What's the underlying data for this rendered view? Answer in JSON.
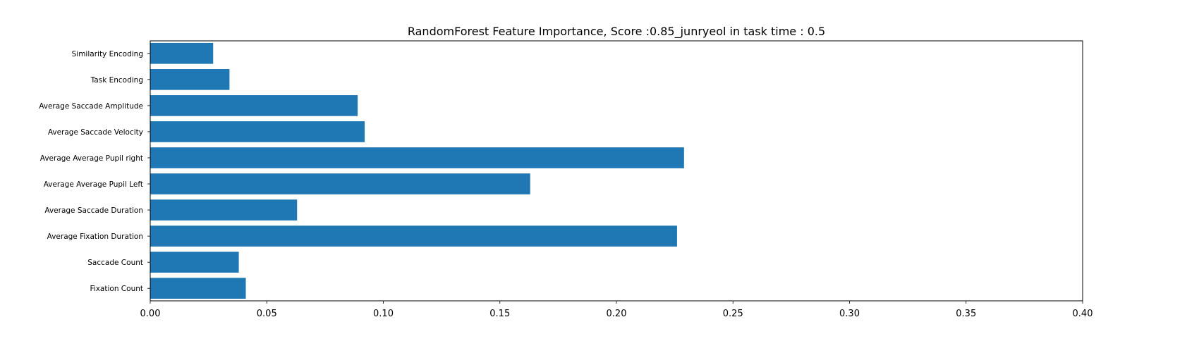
{
  "chart_data": {
    "type": "bar",
    "orientation": "horizontal",
    "title": "RandomForest Feature Importance, Score :0.85_junryeol in task time : 0.5",
    "xlabel": "",
    "ylabel": "",
    "xlim": [
      0,
      0.4
    ],
    "xticks": [
      0.0,
      0.05,
      0.1,
      0.15,
      0.2,
      0.25,
      0.3,
      0.35,
      0.4
    ],
    "xtick_labels": [
      "0.00",
      "0.05",
      "0.10",
      "0.15",
      "0.20",
      "0.25",
      "0.30",
      "0.35",
      "0.40"
    ],
    "categories": [
      "Fixation Count",
      "Saccade Count",
      "Average Fixation Duration",
      "Average Saccade Duration",
      "Average Average Pupil Left",
      "Average Average Pupil right",
      "Average Saccade Velocity",
      "Average Saccade Amplitude",
      "Task Encoding",
      "Similarity Encoding"
    ],
    "values": [
      0.041,
      0.038,
      0.226,
      0.063,
      0.163,
      0.229,
      0.092,
      0.089,
      0.034,
      0.027
    ],
    "bar_color": "#1f77b4",
    "grid": false,
    "legend": "none"
  }
}
